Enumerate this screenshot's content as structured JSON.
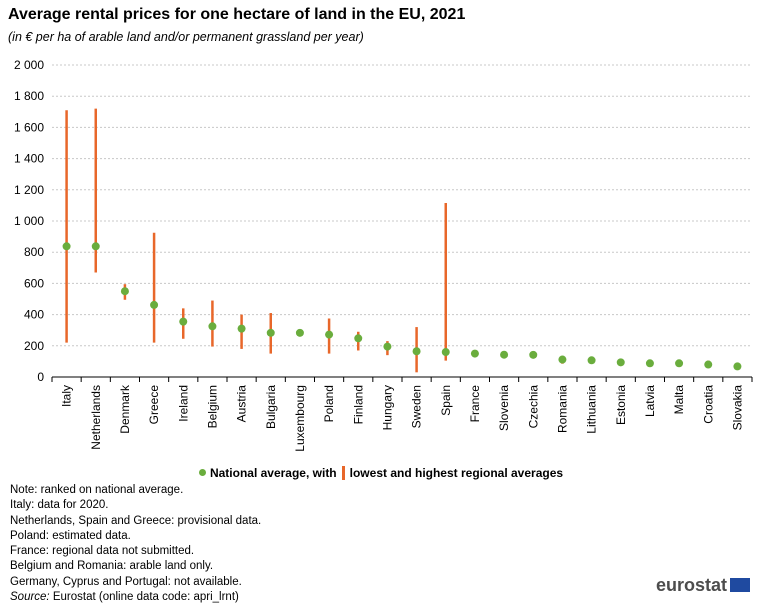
{
  "title": "Average rental prices for one hectare of land in the EU, 2021",
  "subtitle": "(in € per ha of arable land and/or permanent grassland per year)",
  "legend": {
    "national": "National average, with",
    "regional": "lowest and highest regional averages"
  },
  "notes": [
    {
      "prefix": "",
      "text": "Note: ranked on national average."
    },
    {
      "prefix": "",
      "text": "Italy:  data for 2020."
    },
    {
      "prefix": "",
      "text": "Netherlands, Spain and Greece: provisional data."
    },
    {
      "prefix": "",
      "text": "Poland: estimated data."
    },
    {
      "prefix": "",
      "text": "France: regional data not submitted."
    },
    {
      "prefix": "",
      "text": "Belgium and Romania: arable land only."
    },
    {
      "prefix": "",
      "text": "Germany, Cyprus and Portugal: not available."
    },
    {
      "prefix": "Source:",
      "text": " Eurostat (online data code: apri_lrnt)"
    }
  ],
  "logo": "eurostat",
  "colors": {
    "national": "#6aad3d",
    "regional": "#e8672a",
    "grid": "#c8c8c8"
  },
  "chart_data": {
    "type": "scatter",
    "title": "Average rental prices for one hectare of land in the EU, 2021",
    "ylim": [
      0,
      2000
    ],
    "yticks": [
      0,
      200,
      400,
      600,
      800,
      1000,
      1200,
      1400,
      1600,
      1800,
      2000
    ],
    "ytick_labels": [
      "0",
      "200",
      "400",
      "600",
      "800",
      "1 000",
      "1 200",
      "1 400",
      "1 600",
      "1 800",
      "2 000"
    ],
    "grid": true,
    "legend_position": "bottom",
    "categories": [
      "Italy",
      "Netherlands",
      "Denmark",
      "Greece",
      "Ireland",
      "Belgium",
      "Austria",
      "Bulgaria",
      "Luxembourg",
      "Poland",
      "Finland",
      "Hungary",
      "Sweden",
      "Spain",
      "France",
      "Slovenia",
      "Czechia",
      "Romania",
      "Lithuania",
      "Estonia",
      "Latvia",
      "Malta",
      "Croatia",
      "Slovakia"
    ],
    "series": [
      {
        "name": "National average",
        "values": [
          838,
          838,
          550,
          462,
          355,
          325,
          310,
          283,
          283,
          272,
          248,
          195,
          165,
          160,
          150,
          143,
          142,
          112,
          107,
          94,
          88,
          88,
          80,
          68
        ]
      },
      {
        "name": "Lowest regional average",
        "values": [
          220,
          670,
          495,
          220,
          245,
          195,
          180,
          150,
          null,
          150,
          170,
          140,
          30,
          105,
          null,
          null,
          null,
          85,
          null,
          null,
          null,
          null,
          70,
          60
        ]
      },
      {
        "name": "Highest regional average",
        "values": [
          1710,
          1720,
          595,
          925,
          440,
          490,
          400,
          410,
          null,
          375,
          290,
          230,
          320,
          1115,
          null,
          null,
          null,
          130,
          null,
          null,
          null,
          null,
          105,
          80
        ]
      }
    ]
  }
}
